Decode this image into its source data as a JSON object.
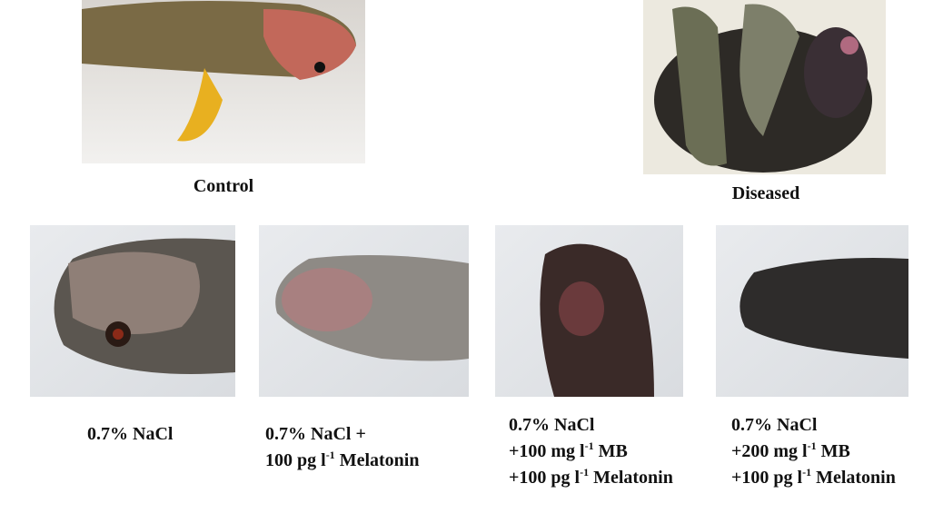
{
  "figure": {
    "top": [
      {
        "caption": "Control"
      },
      {
        "caption": "Diseased"
      }
    ],
    "bottom": [
      {
        "lines": [
          [
            "0.7% NaCl"
          ]
        ]
      },
      {
        "lines": [
          [
            "0.7% NaCl +"
          ],
          [
            "100 pg l",
            "-1",
            " Melatonin"
          ]
        ]
      },
      {
        "lines": [
          [
            "0.7% NaCl"
          ],
          [
            "+100 mg l",
            "-1",
            " MB"
          ],
          [
            "+100 pg l",
            "-1",
            " Melatonin"
          ]
        ]
      },
      {
        "lines": [
          [
            "0.7% NaCl"
          ],
          [
            "+200 mg l",
            "-1",
            " MB"
          ],
          [
            "+100 pg l",
            "-1",
            " Melatonin"
          ]
        ]
      }
    ]
  }
}
